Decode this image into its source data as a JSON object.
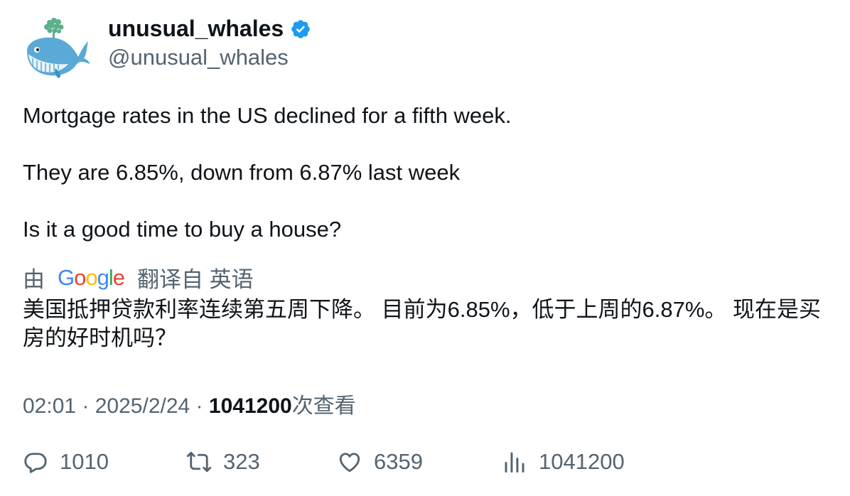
{
  "author": {
    "display_name": "unusual_whales",
    "handle": "@unusual_whales",
    "verified": true,
    "avatar_icon": "whale-avatar",
    "verified_color": "#1d9bf0"
  },
  "tweet": {
    "lines": [
      "Mortgage rates in the US declined for a fifth week.",
      "They are 6.85%, down from 6.87% last week",
      "Is it a good time to buy a house?"
    ]
  },
  "translation": {
    "prefix": "由",
    "provider": "Google",
    "suffix": "翻译自 英语",
    "text": "美国抵押贷款利率连续第五周下降。 目前为6.85%，低于上周的6.87%。 现在是买房的好时机吗？"
  },
  "meta": {
    "time": "02:01",
    "separator": " · ",
    "date": "2025/2/24",
    "views": "1041200",
    "views_label": "次查看"
  },
  "actions": {
    "replies": "1010",
    "retweets": "323",
    "likes": "6359",
    "views": "1041200"
  }
}
